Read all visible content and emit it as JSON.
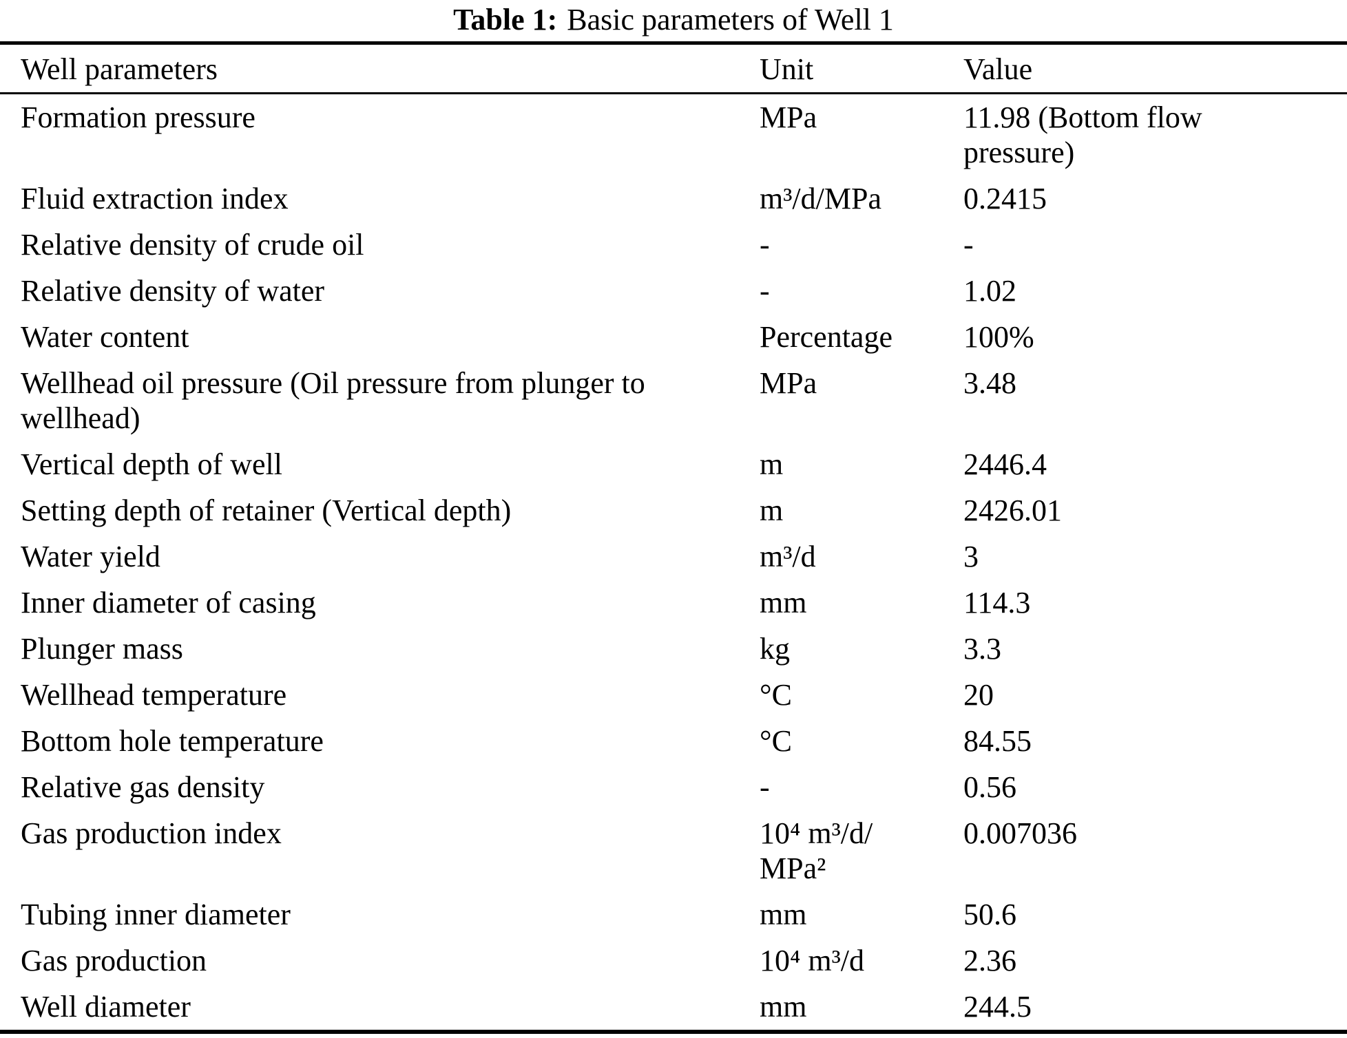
{
  "title": {
    "label": "Table 1:",
    "text": "Basic parameters of Well 1"
  },
  "table": {
    "headers": [
      "Well parameters",
      "Unit",
      "Value"
    ],
    "rows": [
      {
        "parameter": "Formation pressure",
        "unit": "MPa",
        "value": "11.98 (Bottom flow\npressure)"
      },
      {
        "parameter": "Fluid extraction index",
        "unit": "m³/d/MPa",
        "value": "0.2415"
      },
      {
        "parameter": "Relative density of crude oil",
        "unit": "-",
        "value": "-"
      },
      {
        "parameter": "Relative density of water",
        "unit": "-",
        "value": "1.02"
      },
      {
        "parameter": "Water content",
        "unit": "Percentage",
        "value": "100%"
      },
      {
        "parameter": "Wellhead oil pressure (Oil pressure from plunger to\nwellhead)",
        "unit": "MPa",
        "value": "3.48"
      },
      {
        "parameter": "Vertical depth of well",
        "unit": "m",
        "value": "2446.4"
      },
      {
        "parameter": "Setting depth of retainer (Vertical depth)",
        "unit": "m",
        "value": "2426.01"
      },
      {
        "parameter": "Water yield",
        "unit": "m³/d",
        "value": "3"
      },
      {
        "parameter": "Inner diameter of casing",
        "unit": "mm",
        "value": "114.3"
      },
      {
        "parameter": "Plunger mass",
        "unit": "kg",
        "value": "3.3"
      },
      {
        "parameter": "Wellhead temperature",
        "unit": "°C",
        "value": "20"
      },
      {
        "parameter": "Bottom hole temperature",
        "unit": "°C",
        "value": "84.55"
      },
      {
        "parameter": "Relative gas density",
        "unit": "-",
        "value": "0.56"
      },
      {
        "parameter": "Gas production index",
        "unit": "10⁴ m³/d/\nMPa²",
        "value": "0.007036"
      },
      {
        "parameter": "Tubing inner diameter",
        "unit": "mm",
        "value": "50.6"
      },
      {
        "parameter": "Gas production",
        "unit": "10⁴ m³/d",
        "value": "2.36"
      },
      {
        "parameter": "Well diameter",
        "unit": "mm",
        "value": "244.5"
      }
    ]
  }
}
